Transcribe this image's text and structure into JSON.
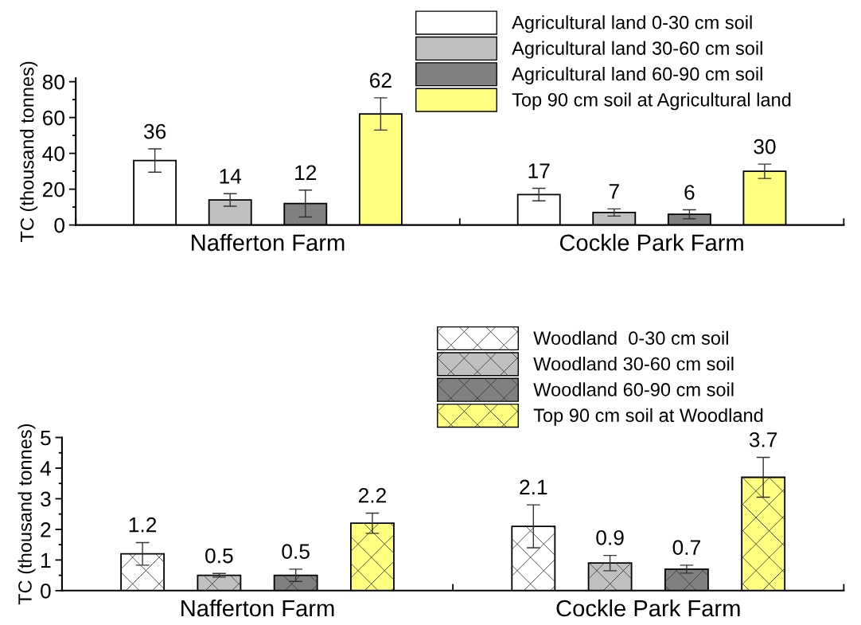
{
  "chart_data": [
    {
      "type": "bar",
      "ylabel": "TC (thousand tonnes)",
      "categories": [
        "Nafferton Farm",
        "Cockle Park Farm"
      ],
      "ylim": [
        0,
        82
      ],
      "yticks": [
        0,
        20,
        40,
        60,
        80
      ],
      "data_labels": true,
      "legend": "top right",
      "series": [
        {
          "name": "Agricultural land 0-30 cm soil",
          "color": "#ffffff",
          "values": [
            36,
            17
          ],
          "errors": [
            6.5,
            3.5
          ]
        },
        {
          "name": "Agricultural land 30-60 cm soil",
          "color": "#c0c0c0",
          "values": [
            14,
            7
          ],
          "errors": [
            3.5,
            2
          ]
        },
        {
          "name": "Agricultural land 60-90 cm soil",
          "color": "#808080",
          "values": [
            12,
            6
          ],
          "errors": [
            7.5,
            2.5
          ]
        },
        {
          "name": "Top 90 cm soil at Agricultural land",
          "color": "#ffff80",
          "values": [
            62,
            30
          ],
          "errors": [
            9,
            4
          ]
        }
      ]
    },
    {
      "type": "bar",
      "ylabel": "TC (thousand tonnes)",
      "categories": [
        "Nafferton Farm",
        "Cockle Park Farm"
      ],
      "ylim": [
        0,
        5
      ],
      "yticks": [
        0,
        1,
        2,
        3,
        4,
        5
      ],
      "data_labels": true,
      "legend": "top right",
      "series": [
        {
          "name": "Woodland  0-30 cm soil",
          "color": "#ffffff",
          "values": [
            1.2,
            2.1
          ],
          "errors": [
            0.37,
            0.7
          ]
        },
        {
          "name": "Woodland 30-60 cm soil",
          "color": "#c0c0c0",
          "values": [
            0.5,
            0.9
          ],
          "errors": [
            0.06,
            0.25
          ]
        },
        {
          "name": "Woodland 60-90 cm soil",
          "color": "#808080",
          "values": [
            0.5,
            0.7
          ],
          "errors": [
            0.2,
            0.13
          ]
        },
        {
          "name": "Top 90 cm soil at Woodland",
          "color": "#ffff80",
          "values": [
            2.2,
            3.7
          ],
          "errors": [
            0.33,
            0.65
          ]
        }
      ]
    }
  ]
}
